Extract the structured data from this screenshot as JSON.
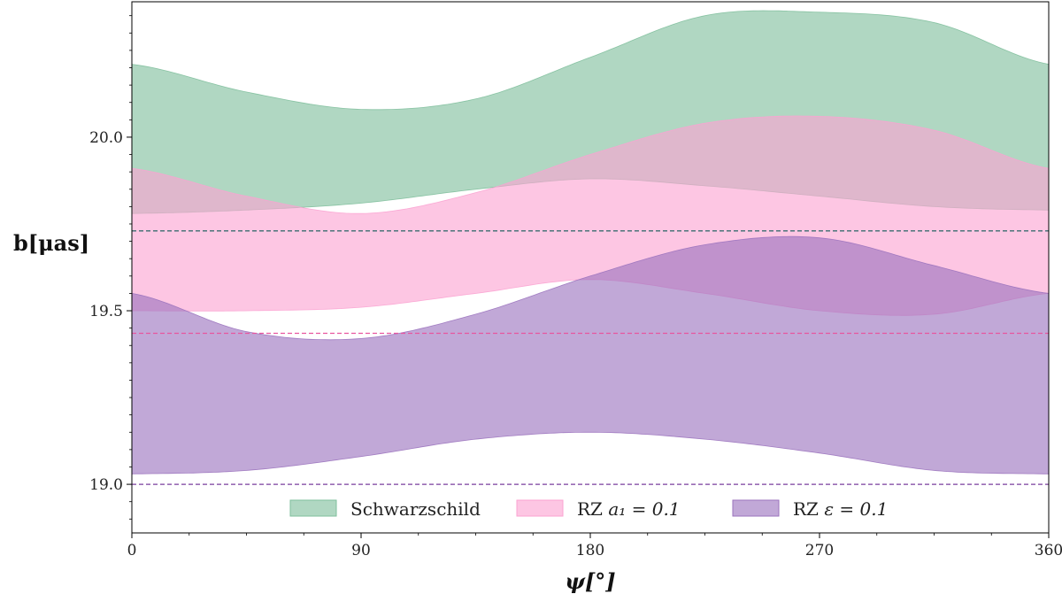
{
  "chart_data": {
    "type": "area",
    "title": "",
    "xlabel": "ψ[°]",
    "ylabel": "b[μas]",
    "xlim": [
      0,
      360
    ],
    "ylim": [
      18.86,
      20.39
    ],
    "xticks": [
      0,
      90,
      180,
      270,
      360
    ],
    "yticks": [
      19.0,
      19.5,
      20.0
    ],
    "xtick_labels": [
      "0",
      "90",
      "180",
      "270",
      "360"
    ],
    "ytick_labels": [
      "19.0",
      "19.5",
      "20.0"
    ],
    "grid": false,
    "legend_position": "bottom-center",
    "series": [
      {
        "name": "Schwarzschild",
        "color": "#7fbf9c",
        "x": [
          0,
          45,
          90,
          135,
          180,
          225,
          270,
          315,
          360
        ],
        "lower": [
          19.78,
          19.79,
          19.81,
          19.85,
          19.88,
          19.86,
          19.83,
          19.8,
          19.79
        ],
        "upper": [
          20.21,
          20.13,
          20.08,
          20.11,
          20.23,
          20.35,
          20.36,
          20.33,
          20.21
        ],
        "reference_line": 19.73
      },
      {
        "name": "RZ a1 = 0.1",
        "legend_prefix": "RZ ",
        "legend_math": "a₁ = 0.1",
        "color": "#fba3d2",
        "x": [
          0,
          45,
          90,
          135,
          180,
          225,
          270,
          315,
          360
        ],
        "lower": [
          19.5,
          19.5,
          19.51,
          19.55,
          19.59,
          19.55,
          19.5,
          19.49,
          19.55
        ],
        "upper": [
          19.91,
          19.83,
          19.78,
          19.84,
          19.95,
          20.04,
          20.06,
          20.02,
          19.91
        ],
        "reference_line": 19.435
      },
      {
        "name": "RZ ε = 0.1",
        "legend_prefix": "RZ ",
        "legend_math": "ε = 0.1",
        "color": "#9b73be",
        "x": [
          0,
          45,
          90,
          135,
          180,
          225,
          270,
          315,
          360
        ],
        "lower": [
          19.03,
          19.04,
          19.08,
          19.13,
          19.15,
          19.13,
          19.09,
          19.04,
          19.03
        ],
        "upper": [
          19.55,
          19.44,
          19.42,
          19.49,
          19.6,
          19.69,
          19.71,
          19.63,
          19.55
        ],
        "reference_line": 19.0
      }
    ]
  }
}
